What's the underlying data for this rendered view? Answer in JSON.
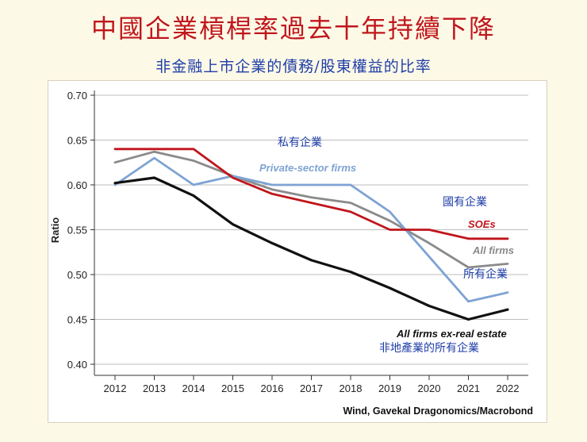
{
  "page": {
    "title": "中國企業槓桿率過去十年持續下降",
    "subtitle": "非金融上市企業的債務/股東權益的比率",
    "source": "Wind, Gavekal Dragonomics/Macrobond"
  },
  "colors": {
    "title": "#c0161c",
    "subtitle": "#1f3ea8",
    "background": "#fdf9e7"
  },
  "chart_data": {
    "type": "line",
    "title": "",
    "xlabel": "",
    "ylabel": "Ratio",
    "ylim": [
      0.4,
      0.7
    ],
    "yticks": [
      "0.40",
      "0.45",
      "0.50",
      "0.55",
      "0.60",
      "0.65",
      "0.70"
    ],
    "grid": true,
    "categories": [
      "2012",
      "2013",
      "2014",
      "2015",
      "2016",
      "2017",
      "2018",
      "2019",
      "2020",
      "2021",
      "2022"
    ],
    "series": [
      {
        "name": "SOEs",
        "name_zh": "國有企業",
        "color": "#c0161c",
        "values": [
          0.64,
          0.64,
          0.64,
          0.608,
          0.59,
          0.58,
          0.57,
          0.55,
          0.55,
          0.54,
          0.54
        ]
      },
      {
        "name": "Private-sector firms",
        "name_zh": "私有企業",
        "color": "#7ea3d3",
        "values": [
          0.6,
          0.63,
          0.6,
          0.61,
          0.6,
          0.6,
          0.6,
          0.57,
          0.52,
          0.47,
          0.48
        ]
      },
      {
        "name": "All firms",
        "name_zh": "所有企業",
        "color": "#8a8a8a",
        "values": [
          0.625,
          0.637,
          0.627,
          0.61,
          0.595,
          0.586,
          0.58,
          0.56,
          0.535,
          0.508,
          0.512
        ]
      },
      {
        "name": "All firms ex-real estate",
        "name_zh": "非地產業的所有企業",
        "color": "#111111",
        "values": [
          0.602,
          0.608,
          0.588,
          0.556,
          0.535,
          0.516,
          0.503,
          0.485,
          0.465,
          0.45,
          0.461
        ]
      }
    ]
  }
}
